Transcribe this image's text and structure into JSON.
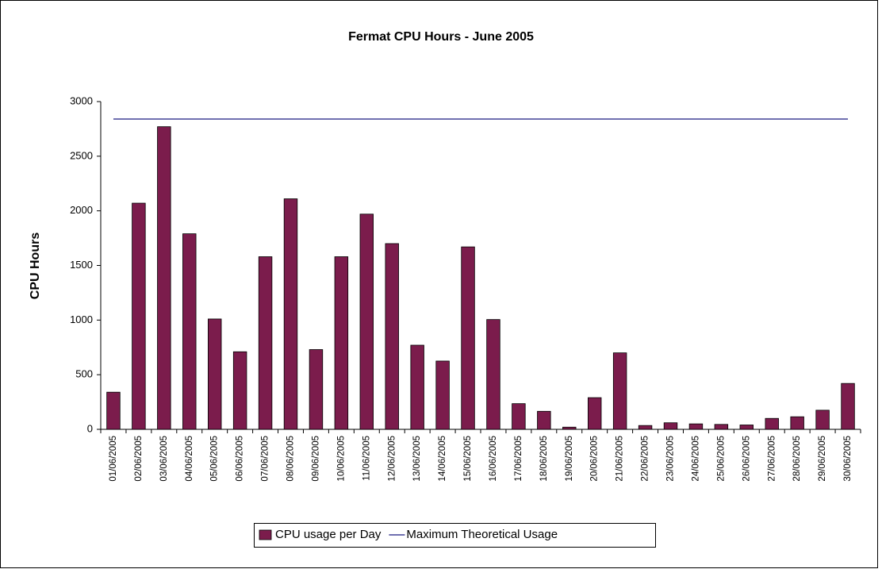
{
  "chart_data": {
    "type": "bar",
    "title": "Fermat CPU Hours - June 2005",
    "y_label": "CPU Hours",
    "categories": [
      "01/06/2005",
      "02/06/2005",
      "03/06/2005",
      "04/06/2005",
      "05/06/2005",
      "06/06/2005",
      "07/06/2005",
      "08/06/2005",
      "09/06/2005",
      "10/06/2005",
      "11/06/2005",
      "12/06/2005",
      "13/06/2005",
      "14/06/2005",
      "15/06/2005",
      "16/06/2005",
      "17/06/2005",
      "18/06/2005",
      "19/06/2005",
      "20/06/2005",
      "21/06/2005",
      "22/06/2005",
      "23/06/2005",
      "24/06/2005",
      "25/06/2005",
      "26/06/2005",
      "27/06/2005",
      "28/06/2005",
      "29/06/2005",
      "30/06/2005"
    ],
    "series": [
      {
        "name": "CPU usage per Day",
        "type": "bar",
        "color": "#7b1c4c",
        "values": [
          340,
          2070,
          2770,
          1790,
          1010,
          710,
          1580,
          2110,
          730,
          1580,
          1970,
          1700,
          770,
          625,
          1670,
          1005,
          235,
          165,
          20,
          290,
          700,
          35,
          60,
          50,
          45,
          40,
          100,
          115,
          175,
          420
        ]
      },
      {
        "name": "Maximum Theoretical Usage",
        "type": "line",
        "color": "#1a1a80",
        "values": [
          2840,
          2840,
          2840,
          2840,
          2840,
          2840,
          2840,
          2840,
          2840,
          2840,
          2840,
          2840,
          2840,
          2840,
          2840,
          2840,
          2840,
          2840,
          2840,
          2840,
          2840,
          2840,
          2840,
          2840,
          2840,
          2840,
          2840,
          2840,
          2840,
          2840
        ]
      }
    ],
    "ylim": [
      0,
      3000
    ],
    "yticks": [
      0,
      500,
      1000,
      1500,
      2000,
      2500,
      3000
    ],
    "grid": false,
    "legend": "bottom"
  }
}
